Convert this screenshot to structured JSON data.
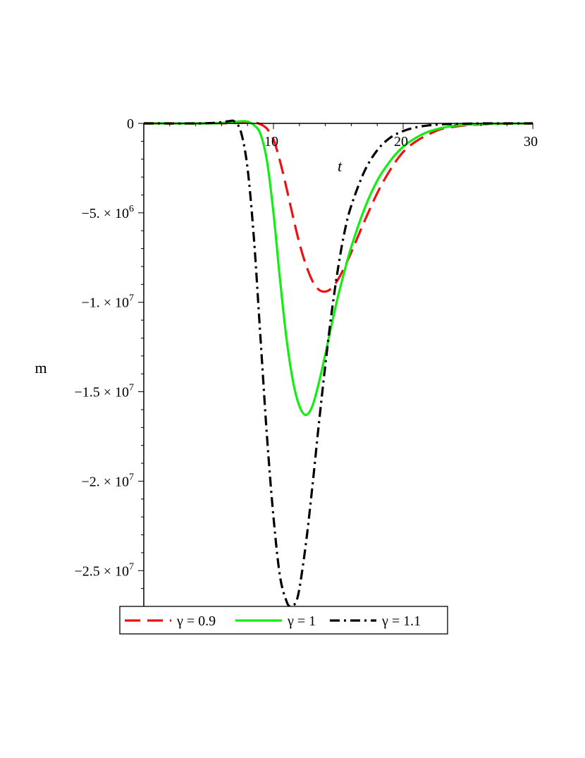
{
  "chart_data": {
    "type": "line",
    "title": "",
    "xlabel": "t",
    "ylabel": "m",
    "xlim": [
      0,
      30
    ],
    "ylim": [
      -27000000,
      0
    ],
    "grid": false,
    "legend_position": "bottom",
    "x_ticks": [
      {
        "value": 10,
        "label": "10"
      },
      {
        "value": 20,
        "label": "20"
      },
      {
        "value": 30,
        "label": "30"
      }
    ],
    "y_ticks": [
      {
        "value": 0,
        "label": "0"
      },
      {
        "value": -5000000,
        "label": "−5. × 10",
        "exp": "6"
      },
      {
        "value": -10000000,
        "label": "−1. × 10",
        "exp": "7"
      },
      {
        "value": -15000000,
        "label": "−1.5 × 10",
        "exp": "7"
      },
      {
        "value": -20000000,
        "label": "−2. × 10",
        "exp": "7"
      },
      {
        "value": -25000000,
        "label": "−2.5 × 10",
        "exp": "7"
      }
    ],
    "series": [
      {
        "name": "γ = 0.9",
        "color": "#ee1111",
        "dash": "dashed",
        "x": [
          0,
          5,
          7,
          8,
          8.5,
          9,
          9.5,
          10,
          10.5,
          11,
          11.5,
          12,
          12.5,
          13,
          13.5,
          14,
          14.5,
          15,
          15.5,
          16,
          17,
          18,
          19,
          20,
          21,
          22,
          23,
          24,
          25,
          27,
          30
        ],
        "y": [
          0,
          0,
          20000,
          80000,
          60000,
          -50000,
          -300000,
          -900000,
          -2100000,
          -3600000,
          -5200000,
          -6700000,
          -7900000,
          -8800000,
          -9300000,
          -9400000,
          -9200000,
          -8700000,
          -8000000,
          -7200000,
          -5500000,
          -3900000,
          -2600000,
          -1600000,
          -1000000,
          -600000,
          -300000,
          -180000,
          -100000,
          -30000,
          0
        ]
      },
      {
        "name": "γ = 1",
        "color": "#11ee11",
        "dash": "solid",
        "x": [
          0,
          5,
          6.5,
          7.5,
          8,
          8.5,
          9,
          9.5,
          10,
          10.5,
          11,
          11.5,
          12,
          12.5,
          13,
          13.5,
          14,
          14.5,
          15,
          15.5,
          16,
          17,
          18,
          19,
          20,
          21,
          22,
          23,
          24,
          25,
          27,
          30
        ],
        "y": [
          0,
          0,
          50000,
          120000,
          100000,
          -100000,
          -600000,
          -2100000,
          -5000000,
          -8700000,
          -12000000,
          -14400000,
          -15800000,
          -16300000,
          -15800000,
          -14500000,
          -12900000,
          -11200000,
          -9600000,
          -8200000,
          -6900000,
          -4800000,
          -3200000,
          -2100000,
          -1300000,
          -800000,
          -450000,
          -250000,
          -130000,
          -70000,
          -15000,
          0
        ]
      },
      {
        "name": "γ = 1.1",
        "color": "#000000",
        "dash": "dashdot",
        "x": [
          0,
          4,
          5.5,
          6.5,
          7,
          7.5,
          8,
          8.5,
          9,
          9.5,
          10,
          10.5,
          11,
          11.3,
          11.7,
          12,
          12.5,
          13,
          13.5,
          14,
          14.5,
          15,
          15.5,
          16,
          17,
          18,
          19,
          20,
          21,
          22,
          23,
          25,
          27,
          30
        ],
        "y": [
          0,
          0,
          30000,
          120000,
          100000,
          -500000,
          -2500000,
          -6500000,
          -12000000,
          -17500000,
          -22000000,
          -25300000,
          -26700000,
          -27000000,
          -26800000,
          -26000000,
          -23500000,
          -20300000,
          -16800000,
          -13500000,
          -10500000,
          -8000000,
          -6000000,
          -4600000,
          -2700000,
          -1500000,
          -800000,
          -430000,
          -220000,
          -110000,
          -50000,
          -10000,
          0,
          0
        ]
      }
    ]
  }
}
